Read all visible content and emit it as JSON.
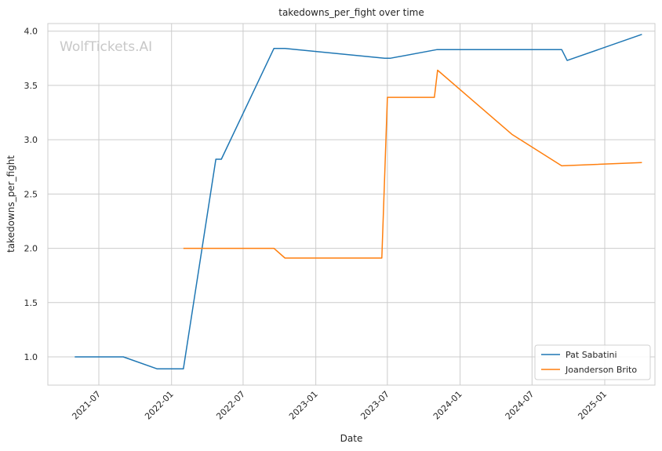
{
  "chart_data": {
    "type": "line",
    "title": "takedowns_per_fight over time",
    "xlabel": "Date",
    "ylabel": "takedowns_per_fight",
    "watermark": "WolfTickets.AI",
    "ylim": [
      0.74,
      4.07
    ],
    "xlim": [
      "2021-02-22",
      "2025-05-08"
    ],
    "x_ticks": [
      "2021-07",
      "2022-01",
      "2022-07",
      "2023-01",
      "2023-07",
      "2024-01",
      "2024-07",
      "2025-01"
    ],
    "y_ticks": [
      "1.0",
      "1.5",
      "2.0",
      "2.5",
      "3.0",
      "3.5",
      "4.0"
    ],
    "grid": true,
    "legend_position": "lower-right",
    "series": [
      {
        "name": "Pat Sabatini",
        "color": "#1f77b4",
        "points": [
          {
            "x": "2021-05-01",
            "y": 1.0
          },
          {
            "x": "2021-09-01",
            "y": 1.0
          },
          {
            "x": "2021-11-25",
            "y": 0.89
          },
          {
            "x": "2022-01-31",
            "y": 0.89
          },
          {
            "x": "2022-04-23",
            "y": 2.82
          },
          {
            "x": "2022-05-07",
            "y": 2.82
          },
          {
            "x": "2022-09-17",
            "y": 3.84
          },
          {
            "x": "2022-10-15",
            "y": 3.84
          },
          {
            "x": "2023-06-24",
            "y": 3.75
          },
          {
            "x": "2023-07-08",
            "y": 3.75
          },
          {
            "x": "2023-11-04",
            "y": 3.83
          },
          {
            "x": "2024-09-14",
            "y": 3.83
          },
          {
            "x": "2024-09-28",
            "y": 3.73
          },
          {
            "x": "2025-04-05",
            "y": 3.97
          }
        ]
      },
      {
        "name": "Joanderson Brito",
        "color": "#ff7f0e",
        "points": [
          {
            "x": "2022-01-31",
            "y": 2.0
          },
          {
            "x": "2022-09-17",
            "y": 2.0
          },
          {
            "x": "2022-10-15",
            "y": 1.91
          },
          {
            "x": "2023-06-17",
            "y": 1.91
          },
          {
            "x": "2023-07-01",
            "y": 3.39
          },
          {
            "x": "2023-10-28",
            "y": 3.39
          },
          {
            "x": "2023-11-05",
            "y": 3.64
          },
          {
            "x": "2024-05-11",
            "y": 3.05
          },
          {
            "x": "2024-09-14",
            "y": 2.76
          },
          {
            "x": "2025-04-05",
            "y": 2.79
          }
        ]
      }
    ]
  }
}
